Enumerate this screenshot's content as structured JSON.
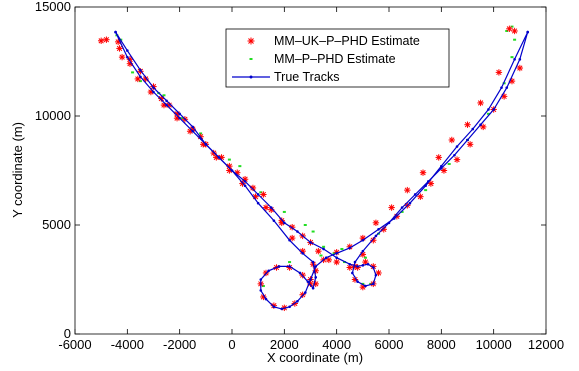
{
  "chart_data": {
    "type": "scatter",
    "xlabel": "X coordinate (m)",
    "ylabel": "Y coordinate (m)",
    "xlim": [
      -6000,
      12000
    ],
    "ylim": [
      0,
      15000
    ],
    "xticks": [
      -6000,
      -4000,
      -2000,
      0,
      2000,
      4000,
      6000,
      8000,
      10000,
      12000
    ],
    "yticks": [
      0,
      5000,
      10000,
      15000
    ],
    "grid": false,
    "legend_position": "top-right",
    "legend": [
      "MM–UK–P–PHD Estimate",
      "MM–P–PHD Estimate",
      "True Tracks"
    ],
    "colors": {
      "mm_uk": "#ff0000",
      "mm_p": "#22dd22",
      "true": "#0000cc"
    },
    "series": [
      {
        "name": "True Tracks",
        "marker": "line-dot",
        "tracks": [
          {
            "x": [
              -4450,
              -4000,
              -3500,
              -3000,
              -2500,
              -2000,
              -1500,
              -1000,
              -500,
              0,
              500,
              1000,
              1500,
              2000,
              2500,
              3000,
              3500,
              4000,
              4500,
              4800,
              5000,
              5200,
              5400,
              5500,
              5400,
              5100,
              4800,
              4600,
              4700,
              5000,
              5500,
              6000,
              6500,
              7000,
              7500,
              8000,
              8500,
              9000,
              9500,
              10000,
              10500,
              11000,
              11300
            ],
            "y": [
              13850,
              13000,
              12100,
              11300,
              10700,
              10100,
              9500,
              8700,
              8100,
              7500,
              7000,
              6400,
              5800,
              5100,
              4700,
              4200,
              3900,
              3500,
              3200,
              3100,
              3150,
              3200,
              3050,
              2700,
              2300,
              2200,
              2400,
              2800,
              3300,
              3800,
              4500,
              5100,
              5800,
              6400,
              7000,
              7600,
              8200,
              8900,
              9600,
              10300,
              11300,
              12600,
              13850
            ]
          },
          {
            "x": [
              11300,
              10800,
              10300,
              9800,
              9200,
              8600,
              8000,
              7400,
              6800,
              6200,
              5600,
              5000,
              4500,
              4000,
              3600,
              3200,
              3000,
              2800,
              2500,
              2200,
              1900,
              1600,
              1300,
              1100,
              1100,
              1400,
              1800,
              2200,
              2600,
              2900,
              3100,
              3200,
              3100,
              2700,
              2200,
              1600,
              1000,
              500,
              0,
              -500,
              -1000,
              -1500,
              -2000,
              -2500,
              -3000,
              -3500,
              -4000,
              -4450
            ],
            "y": [
              13850,
              12600,
              11300,
              10300,
              9400,
              8600,
              7700,
              6800,
              6000,
              5300,
              4800,
              4300,
              3950,
              3700,
              3500,
              3100,
              2500,
              1900,
              1500,
              1250,
              1150,
              1250,
              1600,
              2000,
              2500,
              2900,
              3100,
              3100,
              2800,
              2400,
              2100,
              2600,
              3300,
              3700,
              4300,
              5200,
              6000,
              6800,
              7500,
              8100,
              8700,
              9300,
              9900,
              10500,
              11100,
              11800,
              12700,
              13850
            ]
          }
        ]
      },
      {
        "name": "MM–UK–P–PHD Estimate",
        "marker": "asterisk",
        "points": [
          [
            -5000,
            13450
          ],
          [
            -4800,
            13500
          ],
          [
            -4350,
            13400
          ],
          [
            -4200,
            12700
          ],
          [
            -3900,
            12600
          ],
          [
            -3500,
            12050
          ],
          [
            -3300,
            11700
          ],
          [
            -3000,
            11350
          ],
          [
            -2700,
            10800
          ],
          [
            -2400,
            10500
          ],
          [
            -2100,
            10100
          ],
          [
            -1800,
            9850
          ],
          [
            -1500,
            9400
          ],
          [
            -1200,
            9050
          ],
          [
            -1000,
            8700
          ],
          [
            -700,
            8300
          ],
          [
            -400,
            8100
          ],
          [
            -100,
            7700
          ],
          [
            200,
            7400
          ],
          [
            500,
            7100
          ],
          [
            800,
            6700
          ],
          [
            1200,
            6400
          ],
          [
            1500,
            5700
          ],
          [
            1900,
            5200
          ],
          [
            2300,
            4900
          ],
          [
            2700,
            4500
          ],
          [
            3000,
            4200
          ],
          [
            3300,
            3800
          ],
          [
            3700,
            3400
          ],
          [
            4000,
            3300
          ],
          [
            4500,
            3050
          ],
          [
            4800,
            3050
          ],
          [
            5100,
            3300
          ],
          [
            5400,
            3100
          ],
          [
            5600,
            2800
          ],
          [
            5400,
            2300
          ],
          [
            5000,
            2150
          ],
          [
            4700,
            2500
          ],
          [
            4700,
            3100
          ],
          [
            5000,
            3650
          ],
          [
            5400,
            4300
          ],
          [
            5800,
            4800
          ],
          [
            6300,
            5400
          ],
          [
            6700,
            5900
          ],
          [
            7200,
            6300
          ],
          [
            7600,
            6900
          ],
          [
            8100,
            7500
          ],
          [
            8600,
            8000
          ],
          [
            9100,
            8700
          ],
          [
            9600,
            9500
          ],
          [
            10000,
            10300
          ],
          [
            10400,
            10900
          ],
          [
            10700,
            11600
          ],
          [
            11000,
            12200
          ],
          [
            10600,
            14000
          ],
          [
            10800,
            13900
          ],
          [
            10200,
            12000
          ],
          [
            9500,
            10600
          ],
          [
            9000,
            9600
          ],
          [
            8400,
            8900
          ],
          [
            7900,
            8100
          ],
          [
            7300,
            7400
          ],
          [
            6700,
            6600
          ],
          [
            6100,
            5800
          ],
          [
            5500,
            5100
          ],
          [
            5000,
            4400
          ],
          [
            4500,
            4000
          ],
          [
            4000,
            3750
          ],
          [
            3500,
            3400
          ],
          [
            3200,
            2900
          ],
          [
            3000,
            2500
          ],
          [
            2700,
            1800
          ],
          [
            2400,
            1400
          ],
          [
            2000,
            1200
          ],
          [
            1600,
            1300
          ],
          [
            1200,
            1700
          ],
          [
            1100,
            2300
          ],
          [
            1300,
            2800
          ],
          [
            1700,
            3050
          ],
          [
            2200,
            3050
          ],
          [
            2700,
            2700
          ],
          [
            3000,
            2300
          ],
          [
            3200,
            2300
          ],
          [
            3100,
            3200
          ],
          [
            2700,
            3800
          ],
          [
            2300,
            4400
          ],
          [
            1900,
            5100
          ],
          [
            1300,
            5800
          ],
          [
            900,
            6300
          ],
          [
            400,
            6900
          ],
          [
            -100,
            7500
          ],
          [
            -600,
            8100
          ],
          [
            -1100,
            8700
          ],
          [
            -1600,
            9300
          ],
          [
            -2100,
            9900
          ],
          [
            -2600,
            10500
          ],
          [
            -3100,
            11100
          ],
          [
            -3600,
            11700
          ],
          [
            -3900,
            12400
          ],
          [
            -4300,
            13100
          ]
        ]
      },
      {
        "name": "MM–P–PHD Estimate",
        "marker": "dot",
        "points": [
          [
            -4400,
            13700
          ],
          [
            -4250,
            13500
          ],
          [
            -3800,
            12000
          ],
          [
            -3500,
            11600
          ],
          [
            -2800,
            11050
          ],
          [
            -2600,
            10950
          ],
          [
            -1900,
            9900
          ],
          [
            -1200,
            9200
          ],
          [
            -100,
            8000
          ],
          [
            300,
            7700
          ],
          [
            1100,
            6500
          ],
          [
            2000,
            5600
          ],
          [
            2800,
            5000
          ],
          [
            3100,
            4700
          ],
          [
            3500,
            4000
          ],
          [
            3900,
            3700
          ],
          [
            4300,
            3300
          ],
          [
            4700,
            2500
          ],
          [
            5000,
            2300
          ],
          [
            5300,
            2300
          ],
          [
            5100,
            3500
          ],
          [
            5600,
            4600
          ],
          [
            6500,
            5600
          ],
          [
            7400,
            6600
          ],
          [
            8300,
            7800
          ],
          [
            9000,
            8900
          ],
          [
            9800,
            10100
          ],
          [
            10400,
            11500
          ],
          [
            10700,
            12700
          ],
          [
            10500,
            13900
          ],
          [
            10700,
            14100
          ],
          [
            10800,
            13500
          ],
          [
            3400,
            3600
          ],
          [
            4200,
            3900
          ],
          [
            2200,
            3300
          ],
          [
            1200,
            2200
          ],
          [
            2000,
            1200
          ]
        ]
      }
    ]
  }
}
